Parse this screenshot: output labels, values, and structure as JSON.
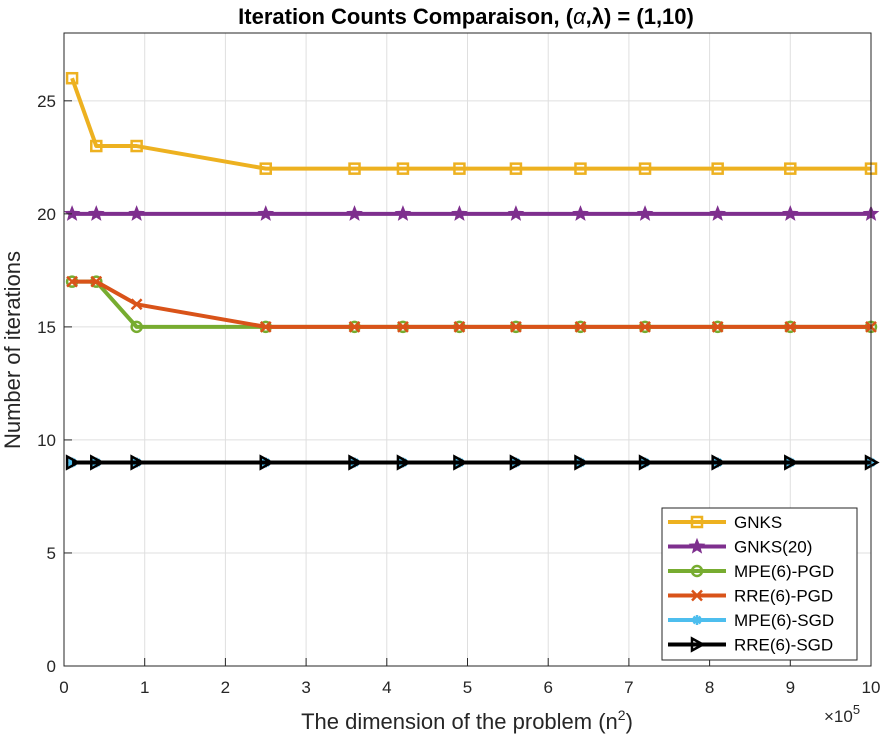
{
  "chart_data": {
    "type": "line",
    "title_prefix": "Iteration Counts Comparaison, (",
    "title_alpha": "α",
    "title_mid": ",",
    "title_lambda": "λ",
    "title_suffix": ") = (1,10)",
    "xlabel_main": "The dimension of the problem (n",
    "xlabel_sup": "2",
    "xlabel_end": ")",
    "ylabel": "Number of iterations",
    "x_exponent_base": "×10",
    "x_exponent_power": "5",
    "xlim": [
      0,
      10
    ],
    "ylim": [
      0,
      28
    ],
    "xticks": [
      0,
      1,
      2,
      3,
      4,
      5,
      6,
      7,
      8,
      9,
      10
    ],
    "yticks": [
      0,
      5,
      10,
      15,
      20,
      25
    ],
    "grid": true,
    "legend_position": "bottom-right",
    "x": [
      0.1,
      0.4,
      0.9,
      2.5,
      3.6,
      4.2,
      4.9,
      5.6,
      6.4,
      7.2,
      8.1,
      9.0,
      10.0
    ],
    "series": [
      {
        "name": "GNKS",
        "color": "#EDB120",
        "marker": "square",
        "values": [
          26,
          23,
          23,
          22,
          22,
          22,
          22,
          22,
          22,
          22,
          22,
          22,
          22
        ]
      },
      {
        "name": "GNKS(20)",
        "color": "#7E2F8E",
        "marker": "star",
        "values": [
          20,
          20,
          20,
          20,
          20,
          20,
          20,
          20,
          20,
          20,
          20,
          20,
          20
        ]
      },
      {
        "name": "MPE(6)-PGD",
        "color": "#77AC30",
        "marker": "circle",
        "values": [
          17,
          17,
          15,
          15,
          15,
          15,
          15,
          15,
          15,
          15,
          15,
          15,
          15
        ]
      },
      {
        "name": "RRE(6)-PGD",
        "color": "#D95319",
        "marker": "x",
        "values": [
          17,
          17,
          16,
          15,
          15,
          15,
          15,
          15,
          15,
          15,
          15,
          15,
          15
        ]
      },
      {
        "name": "MPE(6)-SGD",
        "color": "#4DBEEE",
        "marker": "asterisk",
        "values": [
          9,
          9,
          9,
          9,
          9,
          9,
          9,
          9,
          9,
          9,
          9,
          9,
          9
        ]
      },
      {
        "name": "RRE(6)-SGD",
        "color": "#000000",
        "marker": "triangle-right",
        "values": [
          9,
          9,
          9,
          9,
          9,
          9,
          9,
          9,
          9,
          9,
          9,
          9,
          9
        ]
      }
    ]
  }
}
